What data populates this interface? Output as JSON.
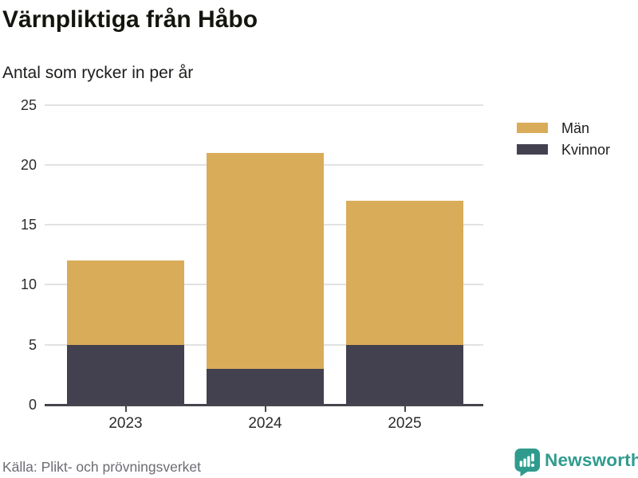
{
  "header": {
    "title": "Värnpliktiga från Håbo",
    "subtitle": "Antal som rycker in per år"
  },
  "footer": {
    "source": "Källa: Plikt- och prövningsverket",
    "brand": "Newsworthy"
  },
  "colors": {
    "men": "#d9ac59",
    "women": "#434050",
    "grid": "#e2e2e2",
    "axis": "#47444e",
    "tick_text": "#2b2b2b",
    "title_text": "#15150f",
    "muted_text": "#6c6c74",
    "brand_teal": "#2f9b8e",
    "background": "#ffffff"
  },
  "icons": {
    "brand_icon": "bar-chart-speech-bubble-icon"
  },
  "chart_data": {
    "type": "bar",
    "stacked": true,
    "title": "Värnpliktiga från Håbo",
    "subtitle": "Antal som rycker in per år",
    "xlabel": "",
    "ylabel": "",
    "categories": [
      "2023",
      "2024",
      "2025"
    ],
    "series": [
      {
        "name": "Män",
        "key": "men",
        "color": "#d9ac59",
        "values": [
          7,
          18,
          12
        ]
      },
      {
        "name": "Kvinnor",
        "key": "women",
        "color": "#434050",
        "values": [
          5,
          3,
          5
        ]
      }
    ],
    "stack_bottom_to_top": [
      "Kvinnor",
      "Män"
    ],
    "totals": [
      12,
      21,
      17
    ],
    "ylim": [
      0,
      25
    ],
    "yticks": [
      0,
      5,
      10,
      15,
      20,
      25
    ],
    "grid": true,
    "legend_position": "top-right"
  }
}
